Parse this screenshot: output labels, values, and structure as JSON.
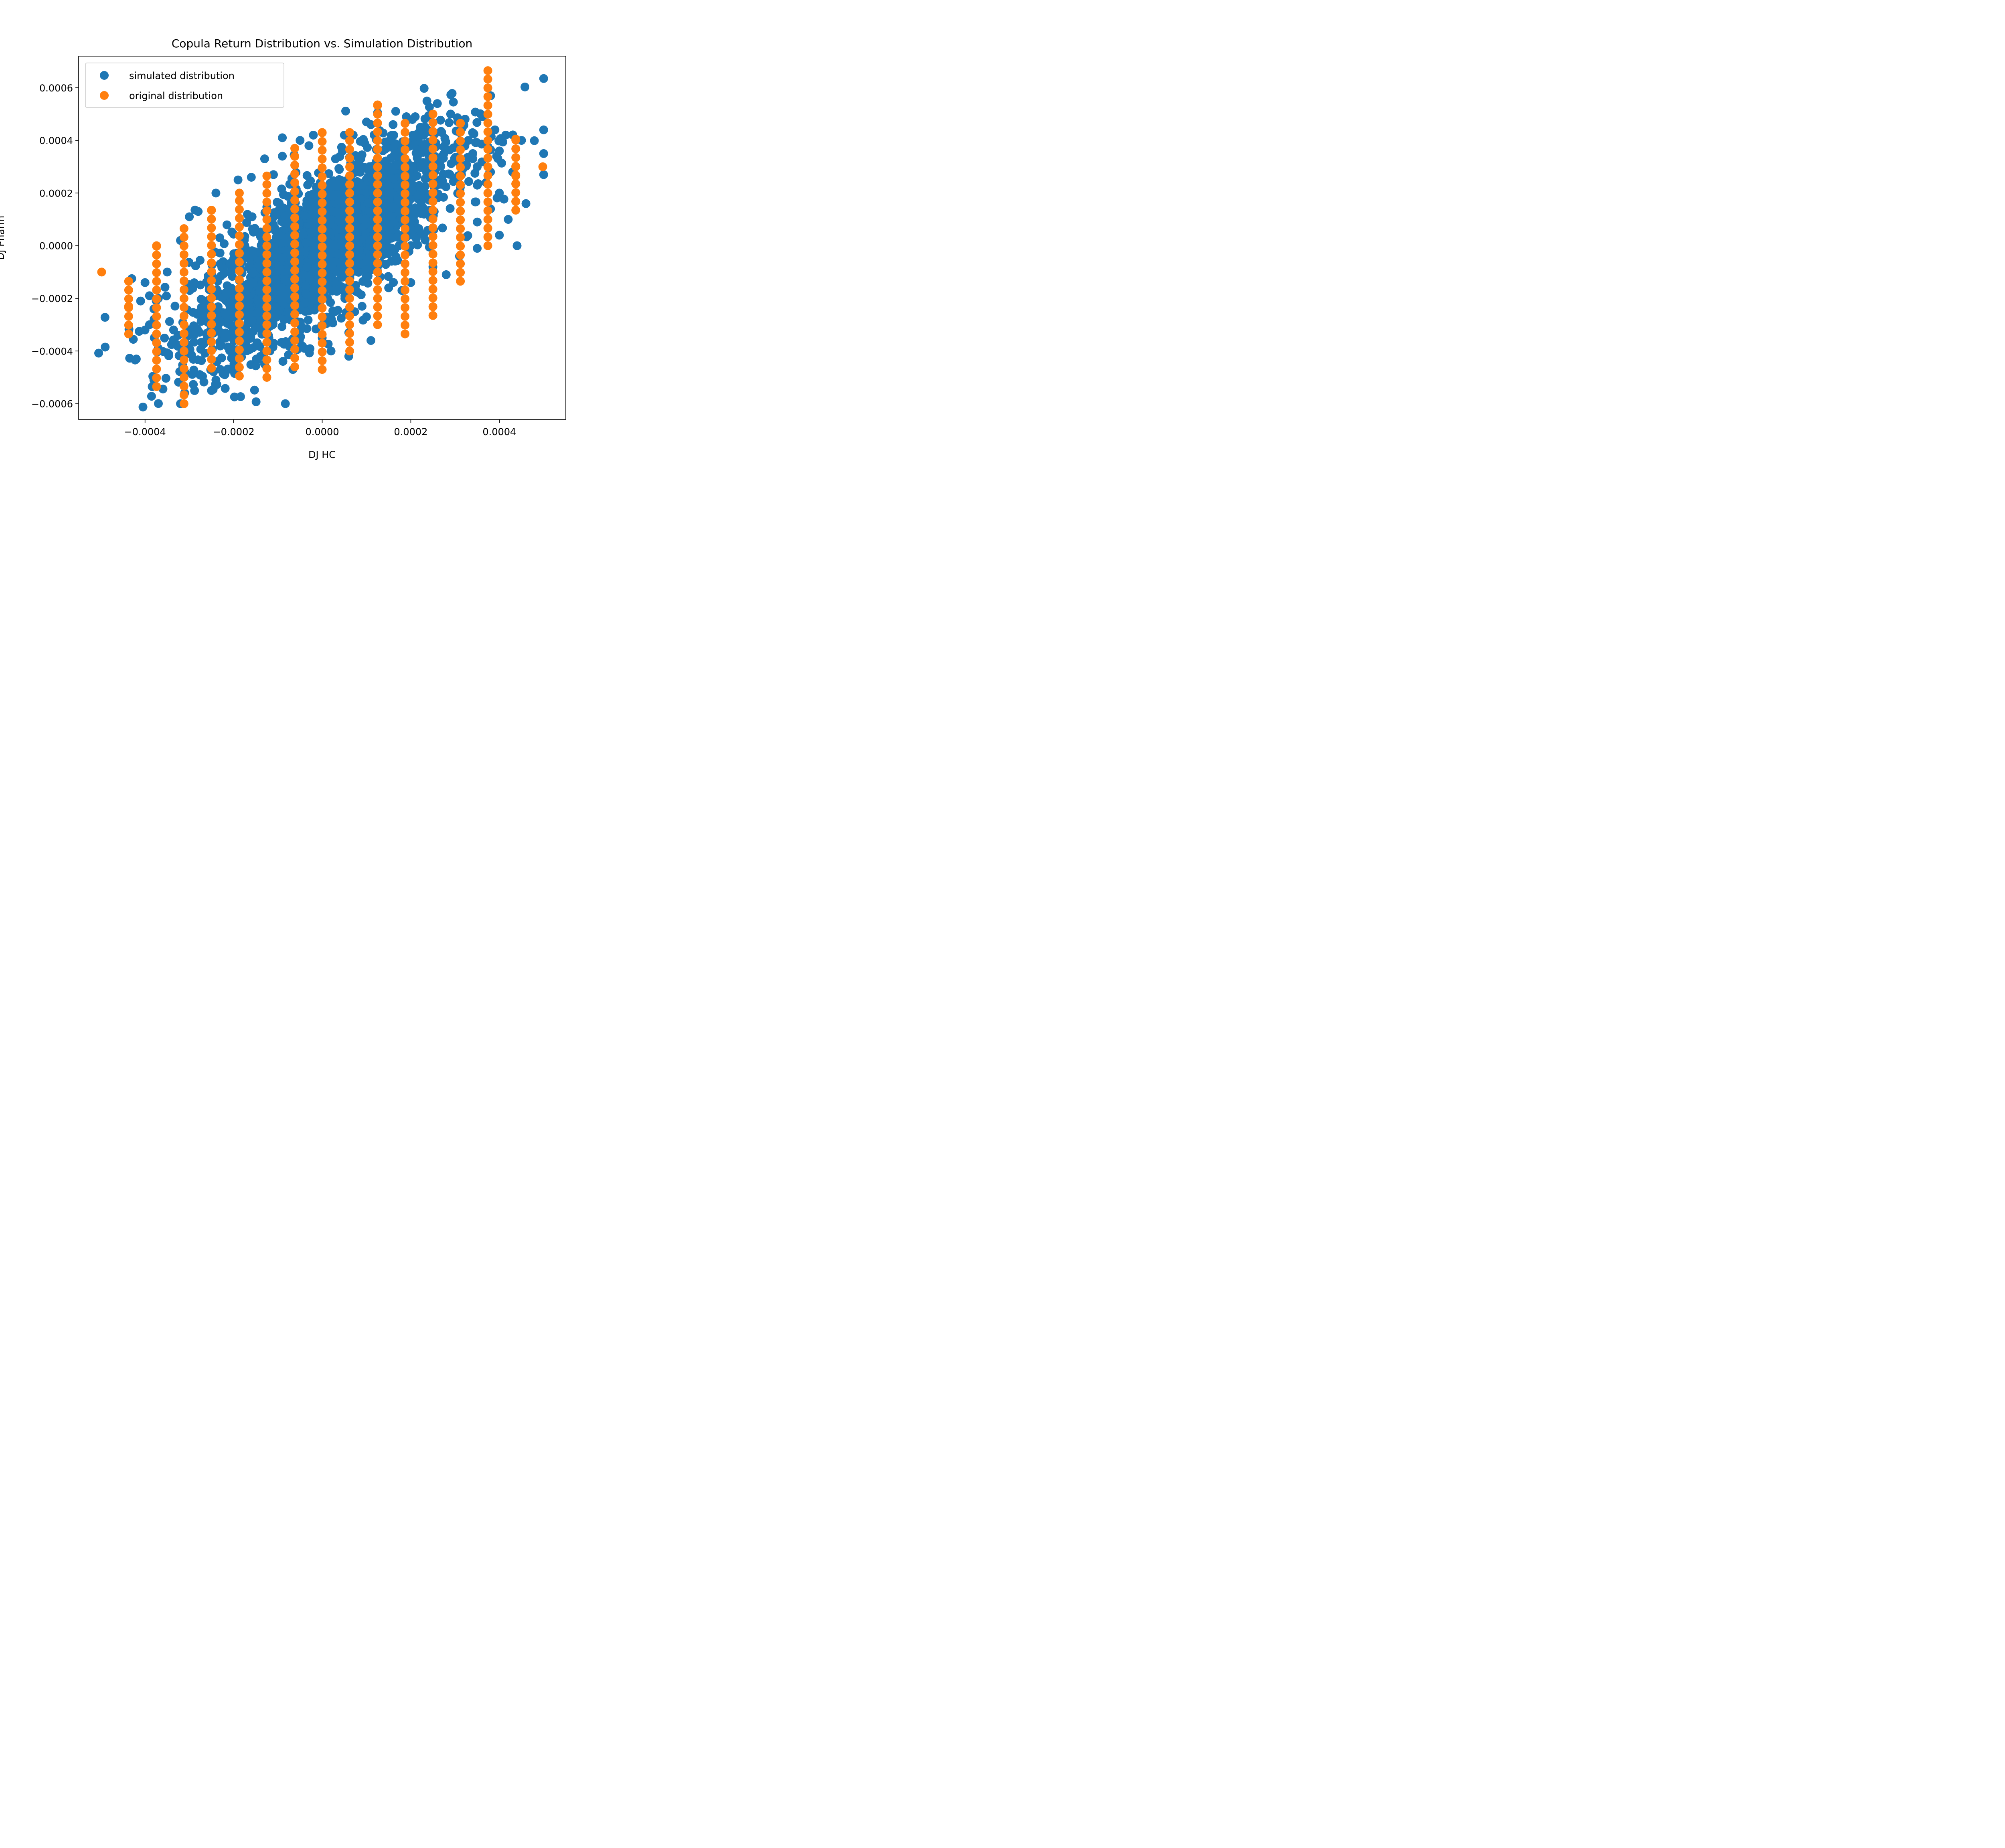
{
  "chart_data": {
    "type": "scatter",
    "title": "Copula Return Distribution vs. Simulation Distribution",
    "xlabel": "DJ HC",
    "ylabel": "DJ Pharm",
    "xlim": [
      -0.00055,
      0.00055
    ],
    "ylim": [
      -0.00066,
      0.00072
    ],
    "x_ticks": [
      -0.0004,
      -0.0002,
      0.0,
      0.0002,
      0.0004
    ],
    "x_tick_labels": [
      "−0.0004",
      "−0.0002",
      "0.0000",
      "0.0002",
      "0.0004"
    ],
    "y_ticks": [
      -0.0006,
      -0.0004,
      -0.0002,
      0.0,
      0.0002,
      0.0004,
      0.0006
    ],
    "y_tick_labels": [
      "−0.0006",
      "−0.0004",
      "−0.0002",
      "0.0000",
      "0.0002",
      "0.0004",
      "0.0006"
    ],
    "grid": false,
    "legend_position": "top-left",
    "series": [
      {
        "name": "simulated distribution",
        "color": "#1f77b4",
        "description": "dense elliptical cloud with positive correlation",
        "points": [
          [
            -0.00049,
            -0.000385
          ],
          [
            -0.00043,
            -0.000125
          ],
          [
            -0.00041,
            -0.00021
          ],
          [
            -0.0004,
            -0.00014
          ],
          [
            -0.00039,
            -0.00019
          ],
          [
            -0.00039,
            -0.0003
          ],
          [
            -0.00038,
            -0.00024
          ],
          [
            -0.00037,
            -0.0002
          ],
          [
            -0.00037,
            -0.00039
          ],
          [
            -0.00038,
            -0.00051
          ],
          [
            -0.0004,
            -0.00032
          ],
          [
            -0.00035,
            -0.0001
          ],
          [
            -0.00032,
            -0.0006
          ],
          [
            -0.00031,
            -0.00048
          ],
          [
            -0.0003,
            0.00011
          ],
          [
            -0.00028,
            0.00013
          ],
          [
            -0.00032,
            2e-05
          ],
          [
            -0.00025,
            -0.00055
          ],
          [
            -0.00024,
            0.0002
          ],
          [
            -0.00024,
            -0.00051
          ],
          [
            -0.00022,
            -0.00049
          ],
          [
            -0.00019,
            0.00025
          ],
          [
            -0.00016,
            0.00026
          ],
          [
            -0.00013,
            0.00033
          ],
          [
            -0.00013,
            -0.00045
          ],
          [
            -0.00011,
            0.00027
          ],
          [
            -9e-05,
            0.00041
          ],
          [
            -9e-05,
            0.00034
          ],
          [
            -5e-05,
            0.0004
          ],
          [
            -3e-05,
            0.00038
          ],
          [
            -2e-05,
            0.00042
          ],
          [
            -4e-05,
            -0.00039
          ],
          [
            0.0,
            -0.00035
          ],
          [
            2e-05,
            -0.0004
          ],
          [
            3e-05,
            0.00033
          ],
          [
            5e-05,
            0.00042
          ],
          [
            7e-05,
            0.00042
          ],
          [
            6e-05,
            -0.00042
          ],
          [
            6e-05,
            -0.00033
          ],
          [
            9e-05,
            -0.00023
          ],
          [
            0.0001,
            0.00047
          ],
          [
            0.00011,
            0.00046
          ],
          [
            0.00011,
            -0.00036
          ],
          [
            0.00016,
            0.00046
          ],
          [
            0.00019,
            0.00049
          ],
          [
            0.00021,
            0.00049
          ],
          [
            0.00024,
            0.00049
          ],
          [
            0.00026,
            0.00054
          ],
          [
            0.00027,
            0.00043
          ],
          [
            0.00029,
            0.0005
          ],
          [
            0.00028,
            -0.00011
          ],
          [
            0.00031,
            -4e-05
          ],
          [
            0.00031,
            0.00043
          ],
          [
            0.00033,
            0.0004
          ],
          [
            0.00034,
            0.00035
          ],
          [
            0.00035,
            0.0003
          ],
          [
            0.00035,
            0.00023
          ],
          [
            0.00035,
            9e-05
          ],
          [
            0.00035,
            -1e-05
          ],
          [
            0.00038,
            0.00028
          ],
          [
            0.0004,
            0.0002
          ],
          [
            0.0004,
            4e-05
          ],
          [
            0.00039,
            0.00044
          ],
          [
            0.0004,
            0.00036
          ],
          [
            0.00042,
            0.0001
          ],
          [
            0.00043,
            0.00028
          ],
          [
            0.00045,
            0.0004
          ],
          [
            0.00046,
            0.00016
          ],
          [
            0.00044,
            0.0
          ],
          [
            0.0005,
            0.00027
          ],
          [
            0.0005,
            0.00044
          ],
          [
            0.0005,
            0.00035
          ],
          [
            0.0005,
            0.000635
          ],
          [
            0.00038,
            0.00014
          ],
          [
            0.00037,
            0.00024
          ],
          [
            0.0002,
            -0.00014
          ],
          [
            0.00025,
            -8e-05
          ],
          [
            0.00015,
            -0.00016
          ],
          [
            0.0001,
            -0.00027
          ],
          [
            0.00018,
            -0.00017
          ]
        ]
      },
      {
        "name": "original distribution",
        "color": "#ff7f0e",
        "description": "discrete vertical columns of points at quantised x values",
        "columns": [
          {
            "x": -0.000498,
            "y_min": -0.0001,
            "y_max": -0.0001
          },
          {
            "x": -0.000437,
            "y_min": -0.000335,
            "y_max": -0.000135,
            "extra": [
              -0.00023
            ]
          },
          {
            "x": -0.000374,
            "y_min": -0.000535,
            "y_max": 0.0
          },
          {
            "x": -0.000312,
            "y_min": -0.0006,
            "y_max": 6.5e-05
          },
          {
            "x": -0.00025,
            "y_min": -0.000465,
            "y_max": 0.000135
          },
          {
            "x": -0.000187,
            "y_min": -0.000495,
            "y_max": 0.0002
          },
          {
            "x": -0.000125,
            "y_min": -0.0005,
            "y_max": 0.000265
          },
          {
            "x": -6.2e-05,
            "y_min": -0.00046,
            "y_max": 0.00037
          },
          {
            "x": 0.0,
            "y_min": -0.00047,
            "y_max": 0.00043
          },
          {
            "x": 6.2e-05,
            "y_min": -0.0004,
            "y_max": 0.00043
          },
          {
            "x": 0.000125,
            "y_min": -0.0003,
            "y_max": 0.000535
          },
          {
            "x": 0.000187,
            "y_min": -0.000335,
            "y_max": 0.000465
          },
          {
            "x": 0.00025,
            "y_min": -0.000265,
            "y_max": 0.0005
          },
          {
            "x": 0.000312,
            "y_min": -0.000135,
            "y_max": 0.000465
          },
          {
            "x": 0.000374,
            "y_min": 0.0,
            "y_max": 0.000665
          },
          {
            "x": 0.000437,
            "y_min": 0.000135,
            "y_max": 0.000405,
            "extra": [
              0.000235,
              0.000265,
              0.0003,
              0.000168
            ]
          },
          {
            "x": 0.000498,
            "y_min": 0.0003,
            "y_max": 0.0003
          }
        ]
      }
    ]
  }
}
